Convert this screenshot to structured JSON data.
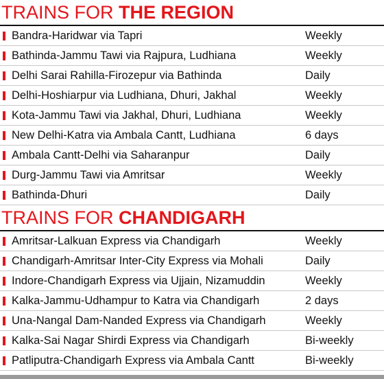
{
  "sections": [
    {
      "title_prefix": "TRAINS FOR ",
      "title_highlight": "THE REGION",
      "rows": [
        [
          "Bandra-Haridwar via Tapri",
          "Weekly"
        ],
        [
          "Bathinda-Jammu Tawi via Rajpura, Ludhiana",
          "Weekly"
        ],
        [
          "Delhi Sarai Rahilla-Firozepur via Bathinda",
          "Daily"
        ],
        [
          "Delhi-Hoshiarpur via Ludhiana, Dhuri, Jakhal",
          "Weekly"
        ],
        [
          "Kota-Jammu Tawi via Jakhal, Dhuri, Ludhiana",
          "Weekly"
        ],
        [
          "New Delhi-Katra via Ambala Cantt, Ludhiana",
          "6 days"
        ],
        [
          "Ambala Cantt-Delhi via Saharanpur",
          "Daily"
        ],
        [
          "Durg-Jammu Tawi via Amritsar",
          "Weekly"
        ],
        [
          "Bathinda-Dhuri",
          "Daily"
        ]
      ]
    },
    {
      "title_prefix": "TRAINS FOR ",
      "title_highlight": "CHANDIGARH",
      "rows": [
        [
          "Amritsar-Lalkuan Express via Chandigarh",
          "Weekly"
        ],
        [
          "Chandigarh-Amritsar Inter-City Express via Mohali",
          "Daily"
        ],
        [
          "Indore-Chandigarh Express via Ujjain, Nizamuddin",
          "Weekly"
        ],
        [
          "Kalka-Jammu-Udhampur to Katra via Chandigarh",
          "2 days"
        ],
        [
          "Una-Nangal Dam-Nanded Express via Chandigarh",
          "Weekly"
        ],
        [
          "Kalka-Sai Nagar Shirdi Express via Chandigarh",
          "Bi-weekly"
        ],
        [
          "Patliputra-Chandigarh Express via Ambala Cantt",
          "Bi-weekly"
        ]
      ]
    }
  ]
}
